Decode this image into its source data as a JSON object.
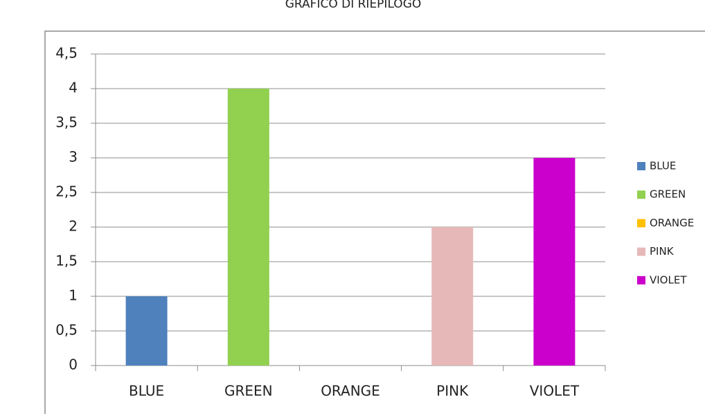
{
  "chart_data": {
    "type": "bar",
    "title": "GRAFICO DI RIEPILOGO",
    "categories": [
      "BLUE",
      "GREEN",
      "ORANGE",
      "PINK",
      "VIOLET"
    ],
    "values": [
      1,
      4,
      0,
      2,
      3
    ],
    "colors": [
      "#4f81bd",
      "#92d050",
      "#ffc000",
      "#e6b9b8",
      "#cc00cc"
    ],
    "ylim": [
      0,
      4.5
    ],
    "yticks": [
      0,
      {
        "value": 0.5,
        "label": "0,5"
      },
      1,
      {
        "value": 1.5,
        "label": "1,5"
      },
      2,
      {
        "value": 2.5,
        "label": "2,5"
      },
      3,
      {
        "value": 3.5,
        "label": "3,5"
      },
      4,
      {
        "value": 4.5,
        "label": "4,5"
      }
    ],
    "grid": true,
    "legend": "right"
  }
}
